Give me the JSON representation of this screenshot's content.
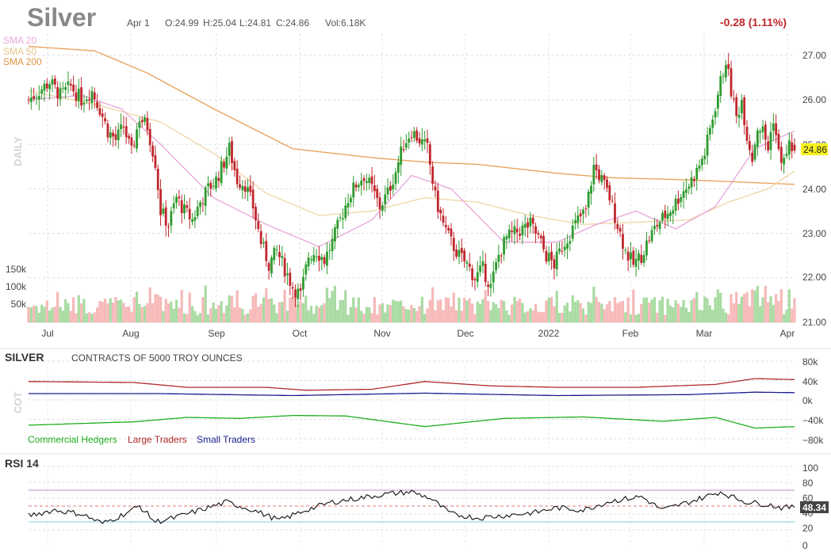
{
  "header": {
    "symbol": "Silver",
    "date": "Apr 1",
    "open": "O:24.99",
    "high": "H:25.04",
    "low": "L:24.81",
    "close": "C:24.86",
    "volume": "Vol:6.18K",
    "change": "-0.28 (1.11%)",
    "last_price": "24.86"
  },
  "colors": {
    "up": "#2e9b2e",
    "down": "#c0272d",
    "vol_up": "#a8dba1",
    "vol_down": "#f7b9b9",
    "sma20": "#e7a6da",
    "sma50": "#eed6a6",
    "sma200": "#e9a45f",
    "commercial": "#1fae1f",
    "large": "#b02a2a",
    "small": "#1c1c90",
    "rsi": "#111111",
    "rsi70": "#c9a0d9",
    "rsi30": "#9fd3e6",
    "rsi50": "#e07a7a"
  },
  "price_panel": {
    "side_label": "DAILY",
    "legend": [
      "SMA 20",
      "SMA 50",
      "SMA 200"
    ],
    "volume_ticks": [
      "150k",
      "100k",
      "50k"
    ],
    "y_ticks": [
      "27.00",
      "26.00",
      "25.00",
      "24.00",
      "23.00",
      "22.00",
      "21.00"
    ],
    "x_ticks": [
      "Jul",
      "Aug",
      "Sep",
      "Oct",
      "Nov",
      "Dec",
      "2022",
      "Feb",
      "Mar",
      "Apr"
    ]
  },
  "cot_panel": {
    "title": "SILVER",
    "subtitle": "CONTRACTS OF 5000 TROY OUNCES",
    "side_label": "COT",
    "legend": [
      "Commercial Hedgers",
      "Large Traders",
      "Small Traders"
    ],
    "y_ticks": [
      "80k",
      "40k",
      "0k",
      "−40k",
      "−80k"
    ]
  },
  "rsi_panel": {
    "title": "RSI 14",
    "y_ticks": [
      "100",
      "80",
      "60",
      "40",
      "20",
      "0"
    ],
    "last_value": "48.34"
  },
  "chart_data": [
    {
      "type": "candlestick",
      "title": "Silver",
      "ylim": [
        21,
        27.5
      ],
      "x_ticks": [
        "Jul",
        "Aug",
        "Sep",
        "Oct",
        "Nov",
        "Dec",
        "2022",
        "Feb",
        "Mar",
        "Apr"
      ],
      "price_anchors": [
        [
          0,
          26.0
        ],
        [
          4,
          26.2
        ],
        [
          8,
          26.4
        ],
        [
          12,
          26.1
        ],
        [
          16,
          26.3
        ],
        [
          20,
          26.0
        ],
        [
          24,
          26.2
        ],
        [
          27,
          25.8
        ],
        [
          30,
          25.3
        ],
        [
          33,
          25.1
        ],
        [
          36,
          25.4
        ],
        [
          39,
          24.8
        ],
        [
          42,
          25.6
        ],
        [
          45,
          25.4
        ],
        [
          48,
          24.6
        ],
        [
          50,
          23.5
        ],
        [
          53,
          23.2
        ],
        [
          56,
          23.8
        ],
        [
          59,
          23.5
        ],
        [
          62,
          23.3
        ],
        [
          65,
          23.7
        ],
        [
          68,
          24.0
        ],
        [
          71,
          24.2
        ],
        [
          74,
          24.6
        ],
        [
          76,
          24.9
        ],
        [
          79,
          24.2
        ],
        [
          82,
          24.1
        ],
        [
          85,
          23.6
        ],
        [
          88,
          22.8
        ],
        [
          91,
          22.3
        ],
        [
          94,
          22.6
        ],
        [
          97,
          22.2
        ],
        [
          100,
          21.8
        ],
        [
          103,
          21.6
        ],
        [
          106,
          22.5
        ],
        [
          109,
          22.6
        ],
        [
          112,
          22.4
        ],
        [
          115,
          22.8
        ],
        [
          118,
          23.3
        ],
        [
          121,
          23.8
        ],
        [
          124,
          24.1
        ],
        [
          127,
          24.3
        ],
        [
          130,
          24.0
        ],
        [
          133,
          23.6
        ],
        [
          136,
          23.9
        ],
        [
          139,
          24.4
        ],
        [
          142,
          25.0
        ],
        [
          145,
          25.3
        ],
        [
          148,
          25.1
        ],
        [
          151,
          24.9
        ],
        [
          154,
          23.8
        ],
        [
          157,
          23.2
        ],
        [
          160,
          22.8
        ],
        [
          163,
          22.5
        ],
        [
          166,
          22.3
        ],
        [
          169,
          22.0
        ],
        [
          172,
          22.2
        ],
        [
          175,
          21.8
        ],
        [
          178,
          22.5
        ],
        [
          181,
          22.9
        ],
        [
          184,
          23.0
        ],
        [
          187,
          23.1
        ],
        [
          190,
          23.2
        ],
        [
          193,
          22.9
        ],
        [
          196,
          22.5
        ],
        [
          199,
          22.3
        ],
        [
          202,
          22.7
        ],
        [
          205,
          23.0
        ],
        [
          208,
          23.3
        ],
        [
          211,
          23.5
        ],
        [
          214,
          24.5
        ],
        [
          217,
          24.2
        ],
        [
          220,
          23.8
        ],
        [
          223,
          23.2
        ],
        [
          226,
          22.6
        ],
        [
          229,
          22.3
        ],
        [
          232,
          22.5
        ],
        [
          235,
          22.9
        ],
        [
          238,
          23.2
        ],
        [
          241,
          23.4
        ],
        [
          244,
          23.6
        ],
        [
          247,
          23.9
        ],
        [
          250,
          24.1
        ],
        [
          253,
          24.4
        ],
        [
          256,
          24.8
        ],
        [
          259,
          25.6
        ],
        [
          262,
          26.4
        ],
        [
          264,
          26.9
        ],
        [
          266,
          26.2
        ],
        [
          268,
          25.6
        ],
        [
          270,
          26.0
        ],
        [
          272,
          25.2
        ],
        [
          274,
          24.7
        ],
        [
          276,
          25.4
        ],
        [
          278,
          25.3
        ],
        [
          280,
          24.9
        ],
        [
          282,
          25.6
        ],
        [
          284,
          24.8
        ],
        [
          286,
          24.6
        ],
        [
          288,
          25.0
        ],
        [
          290,
          24.86
        ]
      ],
      "sma200": [
        [
          0,
          27.2
        ],
        [
          25,
          27.1
        ],
        [
          45,
          26.6
        ],
        [
          70,
          25.8
        ],
        [
          100,
          24.9
        ],
        [
          130,
          24.7
        ],
        [
          150,
          24.6
        ],
        [
          170,
          24.55
        ],
        [
          200,
          24.35
        ],
        [
          220,
          24.25
        ],
        [
          250,
          24.2
        ],
        [
          270,
          24.15
        ],
        [
          290,
          24.1
        ]
      ],
      "sma50": [
        [
          0,
          26.2
        ],
        [
          25,
          25.9
        ],
        [
          50,
          25.5
        ],
        [
          70,
          24.8
        ],
        [
          90,
          23.9
        ],
        [
          110,
          23.4
        ],
        [
          130,
          23.5
        ],
        [
          150,
          23.8
        ],
        [
          170,
          23.7
        ],
        [
          190,
          23.4
        ],
        [
          210,
          23.2
        ],
        [
          230,
          23.25
        ],
        [
          250,
          23.3
        ],
        [
          265,
          23.7
        ],
        [
          280,
          24.0
        ],
        [
          290,
          24.4
        ]
      ],
      "sma20": [
        [
          0,
          26.0
        ],
        [
          20,
          26.1
        ],
        [
          35,
          25.8
        ],
        [
          50,
          25.0
        ],
        [
          70,
          23.8
        ],
        [
          90,
          23.2
        ],
        [
          110,
          22.7
        ],
        [
          130,
          23.3
        ],
        [
          145,
          24.3
        ],
        [
          160,
          24.0
        ],
        [
          180,
          22.8
        ],
        [
          200,
          22.8
        ],
        [
          215,
          23.2
        ],
        [
          230,
          23.5
        ],
        [
          245,
          23.1
        ],
        [
          260,
          23.6
        ],
        [
          275,
          24.9
        ],
        [
          290,
          25.3
        ]
      ],
      "volume_range": [
        0,
        160000
      ]
    },
    {
      "type": "line",
      "title": "COT",
      "ylim": [
        -80000,
        80000
      ],
      "series": [
        {
          "name": "Commercial Hedgers",
          "values": [
            [
              0,
              -52000
            ],
            [
              40,
              -45000
            ],
            [
              60,
              -36000
            ],
            [
              80,
              -38000
            ],
            [
              100,
              -32000
            ],
            [
              120,
              -33000
            ],
            [
              150,
              -55000
            ],
            [
              180,
              -38000
            ],
            [
              210,
              -35000
            ],
            [
              240,
              -44000
            ],
            [
              260,
              -36000
            ],
            [
              275,
              -58000
            ],
            [
              290,
              -55000
            ]
          ]
        },
        {
          "name": "Large Traders",
          "values": [
            [
              0,
              38000
            ],
            [
              40,
              36000
            ],
            [
              60,
              26000
            ],
            [
              90,
              26000
            ],
            [
              105,
              20000
            ],
            [
              130,
              22000
            ],
            [
              150,
              38000
            ],
            [
              175,
              29000
            ],
            [
              200,
              26000
            ],
            [
              230,
              26000
            ],
            [
              260,
              32000
            ],
            [
              275,
              44000
            ],
            [
              290,
              42000
            ]
          ]
        },
        {
          "name": "Small Traders",
          "values": [
            [
              0,
              13000
            ],
            [
              50,
              13000
            ],
            [
              100,
              9000
            ],
            [
              150,
              14000
            ],
            [
              200,
              9000
            ],
            [
              250,
              11000
            ],
            [
              275,
              16000
            ],
            [
              290,
              15000
            ]
          ]
        }
      ]
    },
    {
      "type": "line",
      "title": "RSI 14",
      "ylim": [
        0,
        100
      ],
      "levels": [
        70,
        50,
        30
      ],
      "values": [
        [
          0,
          38
        ],
        [
          10,
          45
        ],
        [
          20,
          40
        ],
        [
          28,
          28
        ],
        [
          35,
          38
        ],
        [
          42,
          50
        ],
        [
          48,
          30
        ],
        [
          55,
          35
        ],
        [
          65,
          45
        ],
        [
          75,
          55
        ],
        [
          85,
          45
        ],
        [
          95,
          32
        ],
        [
          105,
          45
        ],
        [
          115,
          55
        ],
        [
          125,
          60
        ],
        [
          135,
          65
        ],
        [
          145,
          68
        ],
        [
          152,
          60
        ],
        [
          160,
          40
        ],
        [
          170,
          35
        ],
        [
          180,
          38
        ],
        [
          192,
          42
        ],
        [
          200,
          48
        ],
        [
          210,
          45
        ],
        [
          220,
          56
        ],
        [
          232,
          62
        ],
        [
          240,
          45
        ],
        [
          250,
          55
        ],
        [
          262,
          68
        ],
        [
          266,
          62
        ],
        [
          272,
          55
        ],
        [
          280,
          52
        ],
        [
          285,
          48
        ],
        [
          290,
          48.34
        ]
      ]
    }
  ]
}
